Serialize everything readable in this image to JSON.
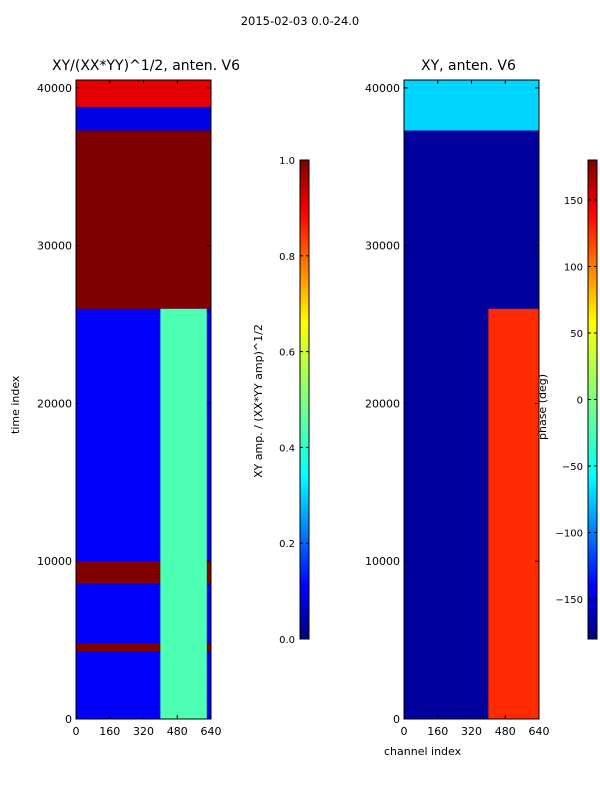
{
  "figure": {
    "suptitle": "2015-02-03 0.0-24.0"
  },
  "chart_data": [
    {
      "type": "heatmap",
      "title": "XY/(XX*YY)^1/2, anten. V6",
      "xlabel": "",
      "ylabel": "time index",
      "xlim": [
        0,
        640
      ],
      "ylim": [
        0,
        40500
      ],
      "xticks": [
        0,
        160,
        320,
        480,
        640
      ],
      "yticks": [
        0,
        10000,
        20000,
        30000,
        40000
      ],
      "colormap": "jet",
      "colorbar": {
        "label": "XY amp. / (XX*YY amp)^1/2",
        "range": [
          0.0,
          1.0
        ],
        "ticks": [
          "0.0",
          "0.2",
          "0.4",
          "0.6",
          "0.8",
          "1.0"
        ]
      },
      "regions": [
        {
          "time_start": 26000,
          "time_end": 37300,
          "channel_start": 0,
          "channel_end": 640,
          "value": 1.0
        },
        {
          "time_start": 37300,
          "time_end": 38800,
          "channel_start": 0,
          "channel_end": 640,
          "value": 0.1
        },
        {
          "time_start": 38800,
          "time_end": 40500,
          "channel_start": 0,
          "channel_end": 640,
          "value": 0.9
        },
        {
          "time_start": 8600,
          "time_end": 10000,
          "channel_start": 0,
          "channel_end": 640,
          "value": 1.0
        },
        {
          "time_start": 4300,
          "time_end": 4800,
          "channel_start": 0,
          "channel_end": 640,
          "value": 1.0
        },
        {
          "time_start": 0,
          "time_end": 26000,
          "channel_start": 400,
          "channel_end": 620,
          "value": 0.45
        }
      ]
    },
    {
      "type": "heatmap",
      "title": "XY, anten. V6",
      "xlabel": "channel index",
      "ylabel": "",
      "xlim": [
        0,
        640
      ],
      "ylim": [
        0,
        40500
      ],
      "xticks": [
        0,
        160,
        320,
        480,
        640
      ],
      "yticks": [
        0,
        10000,
        20000,
        30000,
        40000
      ],
      "colormap": "jet",
      "colorbar": {
        "label": "phase (deg)",
        "range": [
          -180,
          180
        ],
        "ticks": [
          "−150",
          "−100",
          "−50",
          "0",
          "50",
          "100",
          "150"
        ]
      },
      "regions": [
        {
          "time_start": 0,
          "time_end": 37300,
          "channel_start": 0,
          "channel_end": 640,
          "value": -170
        },
        {
          "time_start": 37300,
          "time_end": 40500,
          "channel_start": 0,
          "channel_end": 640,
          "value": -60
        },
        {
          "time_start": 0,
          "time_end": 26000,
          "channel_start": 400,
          "channel_end": 640,
          "value": 120
        }
      ]
    }
  ]
}
